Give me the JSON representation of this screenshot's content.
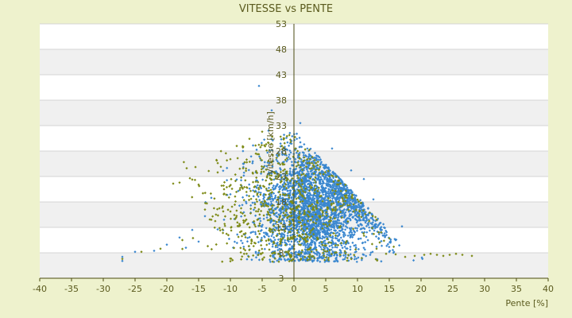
{
  "chart_data": {
    "type": "scatter",
    "title": "VITESSE vs PENTE",
    "xlabel": "Pente [%]",
    "ylabel": "Vitesse [km/h]",
    "xlim": [
      -40,
      40
    ],
    "ylim": [
      3,
      53
    ],
    "x_ticks": [
      "-40",
      "-35",
      "-30",
      "-25",
      "-20",
      "-15",
      "-10",
      "-5",
      "0",
      "5",
      "10",
      "15",
      "20",
      "25",
      "30",
      "35",
      "40"
    ],
    "y_ticks": [
      "3",
      "8",
      "13",
      "18",
      "23",
      "28",
      "33",
      "38",
      "43",
      "48",
      "53"
    ],
    "grid": "horizontal bands",
    "background_color": "#eef2cd",
    "plot_color": "#ffffff",
    "band_color": "#f0f0f0",
    "text_color": "#5a5a1e",
    "axis_color": "#4a4a10",
    "series": [
      {
        "marker": "diamond",
        "color": "#3a87cf",
        "cluster": {
          "x_mean": 3,
          "x_sd": 4.5,
          "y_mean": 17,
          "y_sd": 6,
          "count": 3000
        },
        "points": [
          {
            "x": -5.5,
            "y": 40.8
          },
          {
            "x": -3.5,
            "y": 36
          },
          {
            "x": -4,
            "y": 32
          },
          {
            "x": 1,
            "y": 33.5
          },
          {
            "x": -27,
            "y": 7.2
          },
          {
            "x": -27,
            "y": 6.4
          },
          {
            "x": -25,
            "y": 8.2
          },
          {
            "x": -22,
            "y": 8.4
          },
          {
            "x": -20,
            "y": 9.6
          },
          {
            "x": -18,
            "y": 11
          },
          {
            "x": -17,
            "y": 9
          },
          {
            "x": -16,
            "y": 12.5
          },
          {
            "x": -15,
            "y": 10.2
          },
          {
            "x": -14,
            "y": 15.2
          },
          {
            "x": -13,
            "y": 18.8
          },
          {
            "x": -12,
            "y": 12.6
          },
          {
            "x": -11,
            "y": 14.5
          },
          {
            "x": -10,
            "y": 19.5
          },
          {
            "x": -9,
            "y": 22.4
          },
          {
            "x": -8,
            "y": 25.5
          },
          {
            "x": 12,
            "y": 7.6
          },
          {
            "x": 13,
            "y": 9.2
          },
          {
            "x": 14,
            "y": 11.4
          },
          {
            "x": 15,
            "y": 8.2
          },
          {
            "x": 16,
            "y": 10.5
          },
          {
            "x": 17,
            "y": 13.2
          },
          {
            "x": 12.5,
            "y": 18.5
          },
          {
            "x": 11,
            "y": 22.5
          },
          {
            "x": 9,
            "y": 24.2
          },
          {
            "x": 6,
            "y": 28.5
          }
        ]
      },
      {
        "marker": "diamond",
        "color": "#7d8a16",
        "cluster": {
          "x_mean": -1,
          "x_sd": 6,
          "y_mean": 17,
          "y_sd": 7,
          "count": 800
        },
        "points": [
          {
            "x": -27,
            "y": 6.8
          },
          {
            "x": -24,
            "y": 8.2
          },
          {
            "x": -21,
            "y": 8.8
          },
          {
            "x": -19,
            "y": 21.6
          },
          {
            "x": -18,
            "y": 21.8
          },
          {
            "x": -16,
            "y": 22.4
          },
          {
            "x": -15,
            "y": 21.4
          },
          {
            "x": -14,
            "y": 16.5
          },
          {
            "x": -13,
            "y": 14.5
          },
          {
            "x": -12,
            "y": 23.8
          },
          {
            "x": -11,
            "y": 20.5
          },
          {
            "x": -10,
            "y": 26.4
          },
          {
            "x": -9,
            "y": 29
          },
          {
            "x": -8,
            "y": 24.6
          },
          {
            "x": -7,
            "y": 30.4
          },
          {
            "x": -6,
            "y": 27.5
          },
          {
            "x": -5,
            "y": 31.8
          },
          {
            "x": -4,
            "y": 29.6
          },
          {
            "x": 17.5,
            "y": 7.2
          },
          {
            "x": 19,
            "y": 7.4
          },
          {
            "x": 20.5,
            "y": 7.6
          },
          {
            "x": 21.5,
            "y": 7.8
          },
          {
            "x": 22.5,
            "y": 7.6
          },
          {
            "x": 23.5,
            "y": 7.4
          },
          {
            "x": 24.5,
            "y": 7.6
          },
          {
            "x": 25.5,
            "y": 7.8
          },
          {
            "x": 26.5,
            "y": 7.6
          },
          {
            "x": 28,
            "y": 7.4
          },
          {
            "x": 13,
            "y": 8.8
          },
          {
            "x": 14.5,
            "y": 7.8
          },
          {
            "x": 16,
            "y": 7.7
          }
        ]
      }
    ]
  }
}
